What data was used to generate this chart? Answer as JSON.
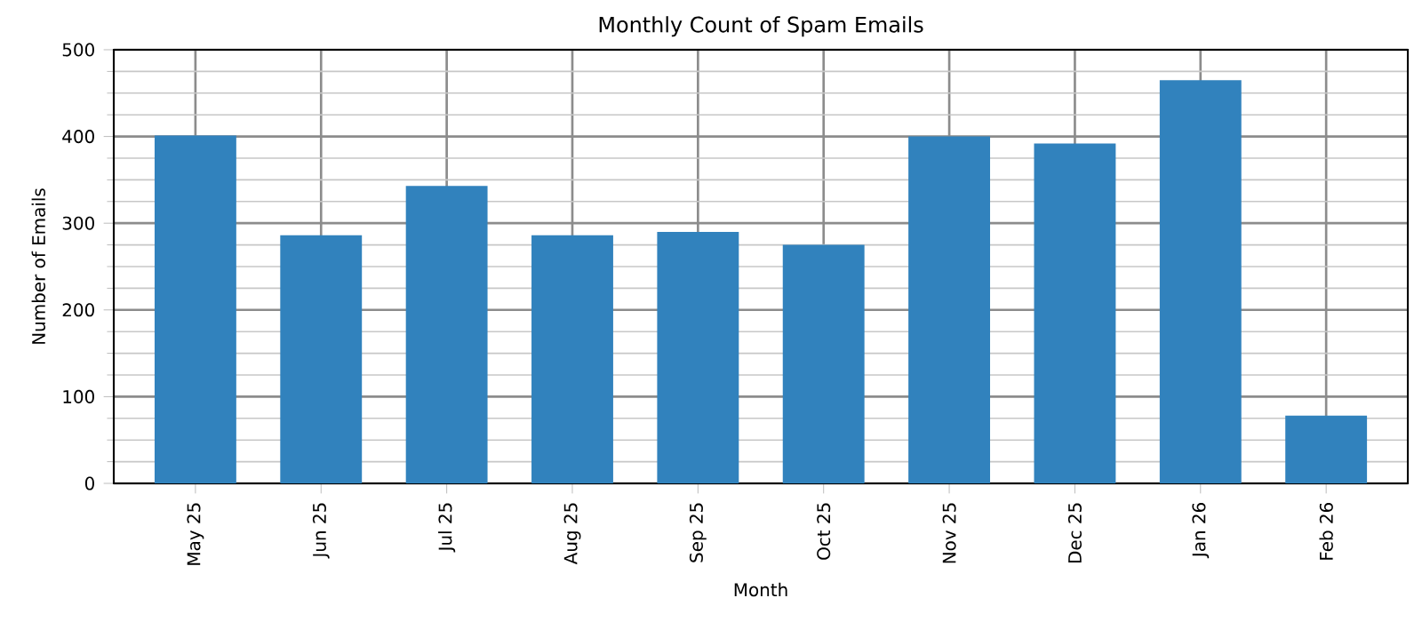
{
  "chart_data": {
    "type": "bar",
    "title": "Monthly Count of Spam Emails",
    "xlabel": "Month",
    "ylabel": "Number of Emails",
    "categories": [
      "May 25",
      "Jun 25",
      "Jul 25",
      "Aug 25",
      "Sep 25",
      "Oct 25",
      "Nov 25",
      "Dec 25",
      "Jan 26",
      "Feb 26"
    ],
    "values": [
      401,
      286,
      343,
      286,
      290,
      275,
      400,
      392,
      465,
      78
    ],
    "color": "#3182bd",
    "ylim": [
      0,
      500
    ],
    "yticks": [
      0,
      100,
      200,
      300,
      400,
      500
    ],
    "grid": true
  }
}
